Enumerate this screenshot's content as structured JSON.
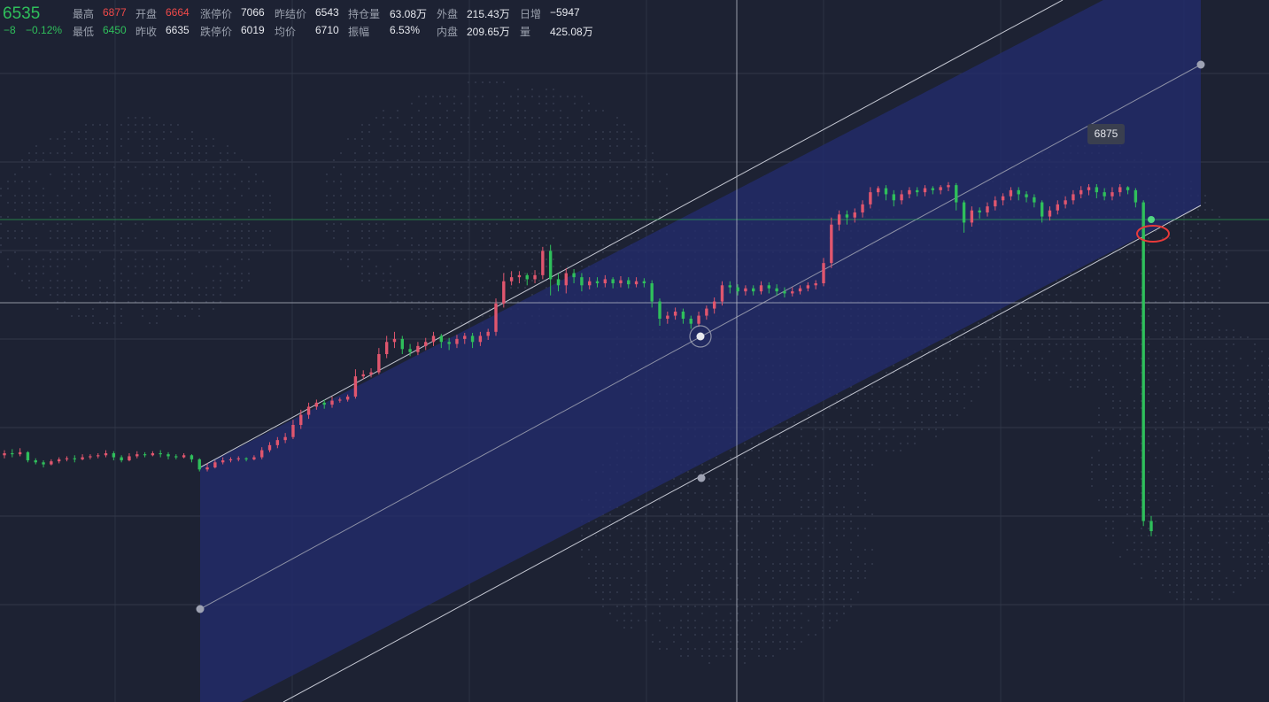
{
  "header": {
    "price": "6535",
    "change": "−8",
    "change_pct": "−0.12%",
    "row1": [
      {
        "label": "最高",
        "value": "6877",
        "color": "red"
      },
      {
        "label": "开盘",
        "value": "6664",
        "color": "red"
      },
      {
        "label": "涨停价",
        "value": "7066",
        "color": "white"
      },
      {
        "label": "昨结价",
        "value": "6543",
        "color": "white"
      },
      {
        "label": "持仓量",
        "value": "63.08万",
        "color": "white"
      },
      {
        "label": "外盘",
        "value": "215.43万",
        "color": "white"
      },
      {
        "label": "日增",
        "value": "−5947",
        "color": "white"
      }
    ],
    "row2": [
      {
        "label": "最低",
        "value": "6450",
        "color": "green"
      },
      {
        "label": "昨收",
        "value": "6635",
        "color": "white"
      },
      {
        "label": "跌停价",
        "value": "6019",
        "color": "white"
      },
      {
        "label": "均价",
        "value": "6710",
        "color": "white"
      },
      {
        "label": "振幅",
        "value": "6.53%",
        "color": "white"
      },
      {
        "label": "内盘",
        "value": "209.65万",
        "color": "white"
      },
      {
        "label": "量",
        "value": "425.08万",
        "color": "white"
      }
    ]
  },
  "tooltip": {
    "value": "6875"
  },
  "colors": {
    "background": "#1d2233",
    "up": "#e0566e",
    "down": "#2fbf5b",
    "channel_fill": "#232c6b",
    "channel_line": "#c5c8d3",
    "highlight_ring": "#e83a3a"
  },
  "chart_data": {
    "type": "candlestick",
    "title": "",
    "xlabel": "",
    "ylabel": "",
    "ylim": [
      6430,
      6920
    ],
    "grid": true,
    "current_price": 6535,
    "peak_marker": 6875,
    "candles": [
      [
        6610,
        6612,
        6615,
        6607
      ],
      [
        6612,
        6611,
        6616,
        6608
      ],
      [
        6611,
        6613,
        6617,
        6609
      ],
      [
        6613,
        6605,
        6614,
        6603
      ],
      [
        6605,
        6603,
        6607,
        6601
      ],
      [
        6603,
        6601,
        6605,
        6598
      ],
      [
        6601,
        6604,
        6606,
        6600
      ],
      [
        6604,
        6606,
        6608,
        6602
      ],
      [
        6606,
        6607,
        6609,
        6604
      ],
      [
        6607,
        6606,
        6610,
        6603
      ],
      [
        6606,
        6608,
        6611,
        6605
      ],
      [
        6608,
        6609,
        6611,
        6606
      ],
      [
        6609,
        6610,
        6612,
        6607
      ],
      [
        6610,
        6612,
        6615,
        6608
      ],
      [
        6612,
        6608,
        6614,
        6605
      ],
      [
        6608,
        6605,
        6610,
        6603
      ],
      [
        6605,
        6609,
        6612,
        6604
      ],
      [
        6609,
        6611,
        6614,
        6607
      ],
      [
        6611,
        6610,
        6613,
        6608
      ],
      [
        6610,
        6612,
        6614,
        6609
      ],
      [
        6612,
        6611,
        6615,
        6608
      ],
      [
        6611,
        6609,
        6613,
        6606
      ],
      [
        6609,
        6608,
        6611,
        6606
      ],
      [
        6608,
        6610,
        6612,
        6607
      ],
      [
        6610,
        6606,
        6611,
        6603
      ],
      [
        6606,
        6596,
        6607,
        6594
      ],
      [
        6596,
        6598,
        6602,
        6594
      ],
      [
        6598,
        6603,
        6605,
        6597
      ],
      [
        6603,
        6605,
        6608,
        6601
      ],
      [
        6605,
        6606,
        6608,
        6603
      ],
      [
        6606,
        6607,
        6609,
        6604
      ],
      [
        6607,
        6606,
        6608,
        6604
      ],
      [
        6606,
        6608,
        6610,
        6605
      ],
      [
        6608,
        6615,
        6618,
        6606
      ],
      [
        6615,
        6620,
        6623,
        6613
      ],
      [
        6620,
        6625,
        6628,
        6617
      ],
      [
        6625,
        6628,
        6632,
        6622
      ],
      [
        6628,
        6640,
        6645,
        6626
      ],
      [
        6640,
        6650,
        6655,
        6636
      ],
      [
        6650,
        6658,
        6662,
        6646
      ],
      [
        6658,
        6662,
        6665,
        6655
      ],
      [
        6662,
        6660,
        6665,
        6656
      ],
      [
        6660,
        6664,
        6668,
        6657
      ],
      [
        6664,
        6665,
        6667,
        6662
      ],
      [
        6665,
        6668,
        6670,
        6663
      ],
      [
        6668,
        6688,
        6695,
        6666
      ],
      [
        6688,
        6690,
        6694,
        6685
      ],
      [
        6690,
        6692,
        6696,
        6687
      ],
      [
        6692,
        6710,
        6716,
        6690
      ],
      [
        6710,
        6722,
        6728,
        6706
      ],
      [
        6722,
        6725,
        6732,
        6716
      ],
      [
        6725,
        6715,
        6728,
        6710
      ],
      [
        6715,
        6712,
        6720,
        6708
      ],
      [
        6712,
        6718,
        6722,
        6709
      ],
      [
        6718,
        6722,
        6726,
        6714
      ],
      [
        6722,
        6728,
        6732,
        6718
      ],
      [
        6728,
        6722,
        6730,
        6716
      ],
      [
        6722,
        6720,
        6726,
        6714
      ],
      [
        6720,
        6725,
        6729,
        6716
      ],
      [
        6725,
        6728,
        6731,
        6720
      ],
      [
        6728,
        6722,
        6731,
        6716
      ],
      [
        6722,
        6728,
        6732,
        6718
      ],
      [
        6728,
        6732,
        6735,
        6724
      ],
      [
        6732,
        6760,
        6765,
        6728
      ],
      [
        6760,
        6782,
        6790,
        6756
      ],
      [
        6782,
        6786,
        6792,
        6778
      ],
      [
        6786,
        6788,
        6792,
        6780
      ],
      [
        6788,
        6784,
        6790,
        6778
      ],
      [
        6784,
        6788,
        6793,
        6780
      ],
      [
        6788,
        6812,
        6816,
        6784
      ],
      [
        6812,
        6784,
        6818,
        6768
      ],
      [
        6784,
        6778,
        6790,
        6772
      ],
      [
        6778,
        6790,
        6795,
        6770
      ],
      [
        6790,
        6786,
        6794,
        6780
      ],
      [
        6786,
        6778,
        6790,
        6772
      ],
      [
        6778,
        6782,
        6786,
        6774
      ],
      [
        6782,
        6780,
        6786,
        6776
      ],
      [
        6780,
        6784,
        6788,
        6776
      ],
      [
        6784,
        6780,
        6786,
        6775
      ],
      [
        6780,
        6783,
        6787,
        6776
      ],
      [
        6783,
        6779,
        6786,
        6775
      ],
      [
        6779,
        6782,
        6786,
        6776
      ],
      [
        6782,
        6780,
        6785,
        6776
      ],
      [
        6780,
        6762,
        6783,
        6756
      ],
      [
        6762,
        6745,
        6765,
        6738
      ],
      [
        6745,
        6748,
        6752,
        6740
      ],
      [
        6748,
        6752,
        6756,
        6744
      ],
      [
        6752,
        6745,
        6755,
        6740
      ],
      [
        6745,
        6740,
        6748,
        6735
      ],
      [
        6740,
        6748,
        6752,
        6737
      ],
      [
        6748,
        6755,
        6758,
        6744
      ],
      [
        6755,
        6762,
        6766,
        6750
      ],
      [
        6762,
        6778,
        6782,
        6758
      ],
      [
        6778,
        6776,
        6782,
        6770
      ],
      [
        6776,
        6772,
        6779,
        6768
      ],
      [
        6772,
        6775,
        6778,
        6768
      ],
      [
        6775,
        6772,
        6778,
        6768
      ],
      [
        6772,
        6778,
        6782,
        6769
      ],
      [
        6778,
        6775,
        6781,
        6770
      ],
      [
        6775,
        6772,
        6779,
        6768
      ],
      [
        6772,
        6770,
        6776,
        6766
      ],
      [
        6770,
        6772,
        6776,
        6767
      ],
      [
        6772,
        6775,
        6778,
        6769
      ],
      [
        6775,
        6778,
        6781,
        6772
      ],
      [
        6778,
        6780,
        6783,
        6774
      ],
      [
        6780,
        6800,
        6805,
        6777
      ],
      [
        6800,
        6838,
        6845,
        6795
      ],
      [
        6838,
        6848,
        6852,
        6832
      ],
      [
        6848,
        6845,
        6852,
        6838
      ],
      [
        6845,
        6850,
        6854,
        6840
      ],
      [
        6850,
        6858,
        6862,
        6845
      ],
      [
        6858,
        6870,
        6875,
        6854
      ],
      [
        6870,
        6874,
        6876,
        6866
      ],
      [
        6874,
        6868,
        6877,
        6862
      ],
      [
        6868,
        6862,
        6872,
        6856
      ],
      [
        6862,
        6868,
        6872,
        6858
      ],
      [
        6868,
        6872,
        6875,
        6864
      ],
      [
        6872,
        6870,
        6875,
        6866
      ],
      [
        6870,
        6874,
        6877,
        6866
      ],
      [
        6874,
        6872,
        6876,
        6868
      ],
      [
        6872,
        6875,
        6877,
        6868
      ],
      [
        6875,
        6877,
        6880,
        6871
      ],
      [
        6877,
        6860,
        6879,
        6852
      ],
      [
        6860,
        6840,
        6862,
        6830
      ],
      [
        6840,
        6852,
        6856,
        6836
      ],
      [
        6852,
        6850,
        6855,
        6844
      ],
      [
        6850,
        6856,
        6860,
        6846
      ],
      [
        6856,
        6862,
        6866,
        6852
      ],
      [
        6862,
        6866,
        6869,
        6857
      ],
      [
        6866,
        6872,
        6875,
        6862
      ],
      [
        6872,
        6868,
        6875,
        6862
      ],
      [
        6868,
        6865,
        6871,
        6860
      ],
      [
        6865,
        6860,
        6868,
        6855
      ],
      [
        6860,
        6846,
        6862,
        6840
      ],
      [
        6846,
        6852,
        6856,
        6842
      ],
      [
        6852,
        6858,
        6862,
        6848
      ],
      [
        6858,
        6862,
        6866,
        6854
      ],
      [
        6862,
        6868,
        6872,
        6858
      ],
      [
        6868,
        6872,
        6876,
        6864
      ],
      [
        6872,
        6875,
        6878,
        6867
      ],
      [
        6875,
        6870,
        6878,
        6864
      ],
      [
        6870,
        6866,
        6874,
        6862
      ],
      [
        6866,
        6870,
        6875,
        6862
      ],
      [
        6870,
        6875,
        6878,
        6866
      ],
      [
        6875,
        6872,
        6876,
        6868
      ],
      [
        6872,
        6860,
        6874,
        6855
      ],
      [
        6860,
        6545,
        6862,
        6540
      ],
      [
        6545,
        6535,
        6550,
        6530
      ]
    ]
  }
}
